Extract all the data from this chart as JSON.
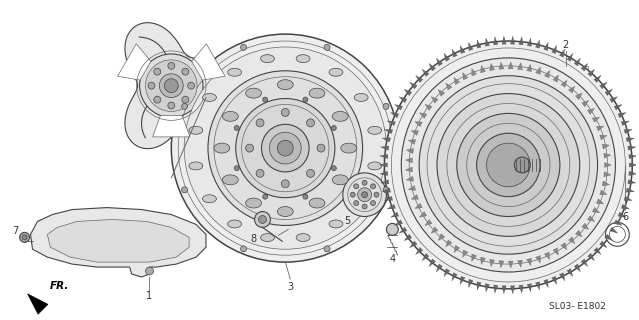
{
  "bg_color": "#ffffff",
  "line_color": "#666666",
  "dark_color": "#444444",
  "label_color": "#333333",
  "fig_width": 6.39,
  "fig_height": 3.2,
  "dpi": 100,
  "diagram_code": "SL03- E1802",
  "fr_label": "FR."
}
